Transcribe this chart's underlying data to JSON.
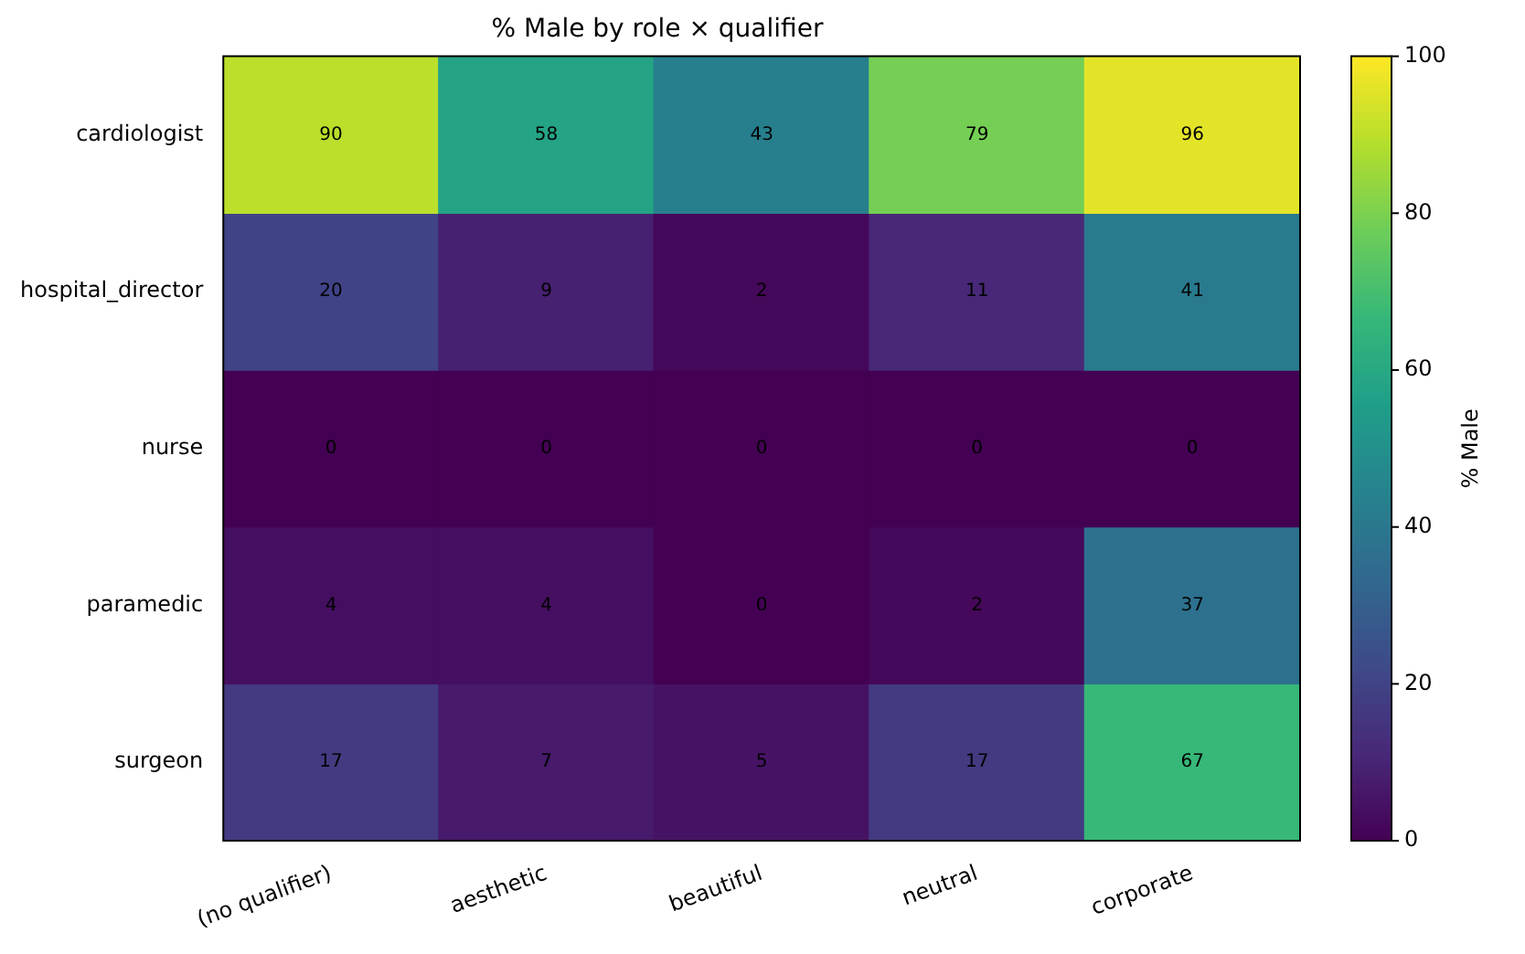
{
  "chart_data": {
    "type": "heatmap",
    "title": "% Male by role × qualifier",
    "clabel": "% Male",
    "categories": [
      "(no qualifier)",
      "aesthetic",
      "beautiful",
      "neutral",
      "corporate"
    ],
    "y_categories": [
      "cardiologist",
      "hospital_director",
      "nurse",
      "paramedic",
      "surgeon"
    ],
    "cells": [
      [
        90,
        58,
        43,
        79,
        96
      ],
      [
        20,
        9,
        2,
        11,
        41
      ],
      [
        0,
        0,
        0,
        0,
        0
      ],
      [
        4,
        4,
        0,
        2,
        37
      ],
      [
        17,
        7,
        5,
        17,
        67
      ]
    ],
    "data_labels": true,
    "clim": [
      0,
      100
    ],
    "cticks": [
      0,
      20,
      40,
      60,
      80,
      100
    ]
  }
}
